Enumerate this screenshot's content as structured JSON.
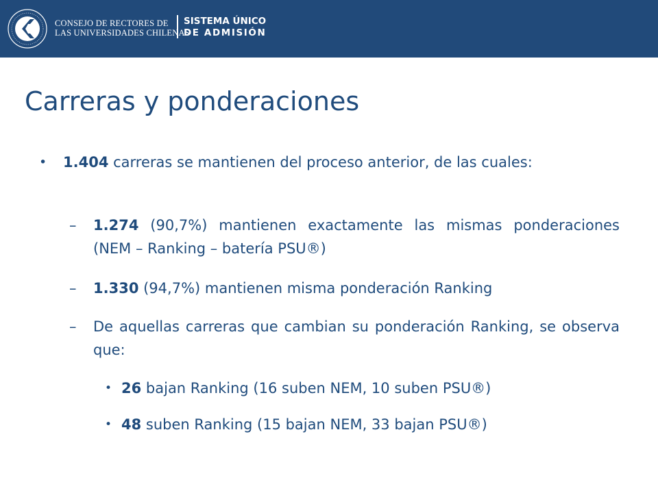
{
  "header": {
    "org_line1": "CONSEJO DE RECTORES DE",
    "org_line2": "LAS UNIVERSIDADES CHILENAS",
    "system_line1": "SISTEMA ÚNICO",
    "system_line2": "DE ADMISIÓN",
    "bar_color": "#214a7a"
  },
  "slide": {
    "title": "Carreras y ponderaciones",
    "text_color": "#1f4b7c",
    "items": [
      {
        "marker": "•",
        "bold": "1.404",
        "text": " carreras se mantienen del proceso anterior, de las cuales:"
      },
      {
        "marker": "–",
        "bold": "1.274",
        "text": " (90,7%) mantienen exactamente las mismas ponderaciones (NEM – Ranking – batería PSU®)"
      },
      {
        "marker": "–",
        "bold": "1.330",
        "text": " (94,7%) mantienen misma ponderación Ranking"
      },
      {
        "marker": "–",
        "bold": "",
        "text": "De aquellas carreras que cambian su ponderación Ranking, se observa que:"
      },
      {
        "marker": "•",
        "bold": "26",
        "text": " bajan Ranking (16 suben NEM, 10 suben PSU®)"
      },
      {
        "marker": "•",
        "bold": "48",
        "text": " suben Ranking (15 bajan NEM, 33 bajan PSU®)"
      }
    ]
  }
}
